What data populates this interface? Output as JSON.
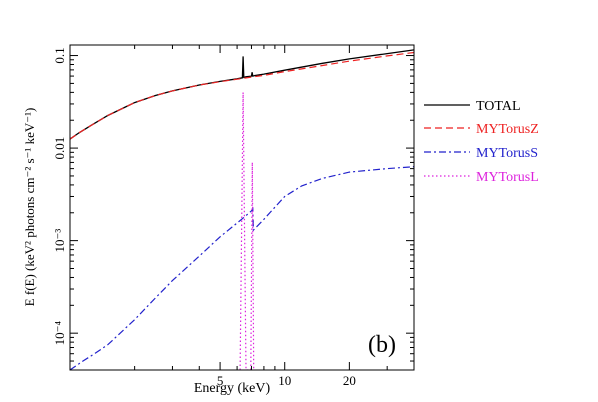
{
  "chart_data": {
    "type": "line",
    "xlabel": "Energy (keV)",
    "ylabel": "E f(E) (keV² photons cm⁻² s⁻¹ keV⁻¹)",
    "xscale": "log",
    "yscale": "log",
    "xlim": [
      1.0,
      40.0
    ],
    "ylim": [
      4e-05,
      0.13
    ],
    "x_ticks": [
      {
        "value": 5,
        "label": "5"
      },
      {
        "value": 10,
        "label": "10"
      },
      {
        "value": 20,
        "label": "20"
      }
    ],
    "y_ticks": [
      {
        "value": 0.1,
        "label": "0.1"
      },
      {
        "value": 0.01,
        "label": "0.01"
      },
      {
        "value": 0.001,
        "label": "10⁻³"
      },
      {
        "value": 0.0001,
        "label": "10⁻⁴"
      }
    ],
    "annotation": "(b)",
    "grid": false,
    "legend_position": "right",
    "series": [
      {
        "name": "TOTAL",
        "color": "#000000",
        "dash": "solid",
        "x": [
          1.0,
          1.1,
          1.25,
          1.5,
          2.0,
          2.5,
          3.0,
          4.0,
          5.0,
          6.0,
          6.35,
          6.4,
          6.45,
          6.6,
          7.0,
          7.05,
          7.1,
          7.2,
          8.0,
          10.0,
          15.0,
          20.0,
          30.0,
          40.0
        ],
        "y": [
          0.0125,
          0.0146,
          0.0175,
          0.0225,
          0.031,
          0.037,
          0.0415,
          0.048,
          0.0525,
          0.056,
          0.0575,
          0.098,
          0.058,
          0.059,
          0.06,
          0.066,
          0.06,
          0.0605,
          0.063,
          0.0695,
          0.0825,
          0.092,
          0.105,
          0.115
        ]
      },
      {
        "name": "MYTorusZ",
        "color": "#ee2222",
        "dash": "dashed",
        "x": [
          1.0,
          1.1,
          1.25,
          1.5,
          2.0,
          2.5,
          3.0,
          4.0,
          5.0,
          6.0,
          7.0,
          8.0,
          10.0,
          15.0,
          20.0,
          30.0,
          40.0
        ],
        "y": [
          0.0125,
          0.0146,
          0.0175,
          0.0225,
          0.031,
          0.037,
          0.0415,
          0.048,
          0.0522,
          0.0555,
          0.0585,
          0.061,
          0.067,
          0.078,
          0.087,
          0.099,
          0.108
        ]
      },
      {
        "name": "MYTorusS",
        "color": "#2222cc",
        "dash": "dashdot",
        "x": [
          1.0,
          1.15,
          1.3,
          1.5,
          2.0,
          2.5,
          3.0,
          4.0,
          5.0,
          6.0,
          6.4,
          7.0,
          7.1,
          7.15,
          8.0,
          9.0,
          10.0,
          12.0,
          15.0,
          20.0,
          30.0,
          40.0
        ],
        "y": [
          3.5e-05,
          5e-05,
          6e-05,
          7.5e-05,
          0.00014,
          0.00024,
          0.00037,
          0.00068,
          0.0011,
          0.00155,
          0.00175,
          0.0021,
          0.0022,
          0.0013,
          0.0017,
          0.0023,
          0.003,
          0.0039,
          0.0047,
          0.0055,
          0.006,
          0.0063
        ]
      },
      {
        "name": "MYTorusL",
        "color": "#dd22dd",
        "dash": "dotted",
        "x": [
          6.2,
          6.4,
          6.6,
          6.95,
          7.06,
          7.17
        ],
        "y": [
          2e-05,
          0.04,
          2e-05,
          2e-05,
          0.007,
          2e-05
        ]
      }
    ]
  }
}
